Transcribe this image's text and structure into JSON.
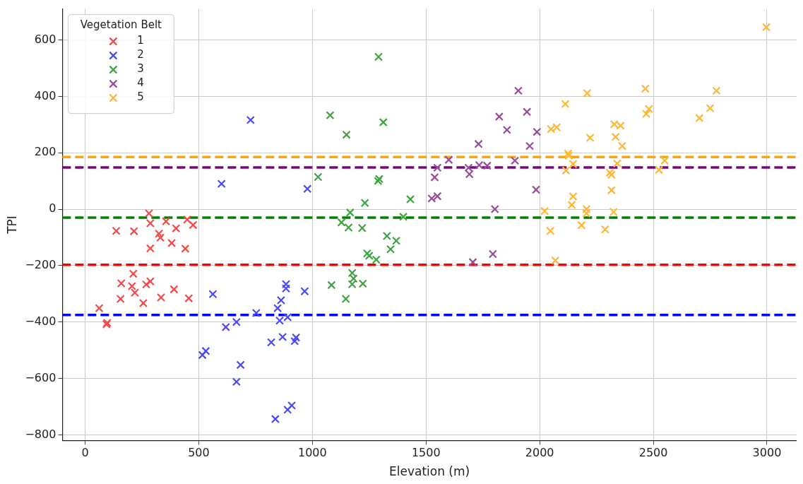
{
  "chart_data": {
    "type": "scatter",
    "xlabel": "Elevation (m)",
    "ylabel": "TPI",
    "legend_title": "Vegetation Belt",
    "legend": "top left",
    "grid": true,
    "marker": "cross",
    "xlim": [
      -100,
      3130
    ],
    "ylim": [
      -820,
      710
    ],
    "xticks": [
      0,
      500,
      1000,
      1500,
      2000,
      2500,
      3000
    ],
    "yticks": [
      {
        "value": -800,
        "label": "−800"
      },
      {
        "value": -600,
        "label": "−600"
      },
      {
        "value": -400,
        "label": "−400"
      },
      {
        "value": -200,
        "label": "−200"
      },
      0,
      200,
      400,
      600
    ],
    "series": [
      {
        "name": "1",
        "color": "#f24a4a",
        "x": [
          137,
          215,
          281,
          287,
          356,
          400,
          449,
          475,
          325,
          331,
          381,
          287,
          441,
          212,
          159,
          206,
          219,
          269,
          287,
          156,
          256,
          334,
          391,
          456,
          62,
          94,
          97
        ],
        "values": [
          -77,
          -78,
          -15,
          -50,
          -43,
          -68,
          -37,
          -56,
          -87,
          -101,
          -120,
          -139,
          -140,
          -229,
          -263,
          -273,
          -296,
          -267,
          -256,
          -318,
          -333,
          -313,
          -284,
          -316,
          -351,
          -408,
          -403
        ]
      },
      {
        "name": "2",
        "color": "#4a4af2",
        "x": [
          562,
          516,
          531,
          619,
          666,
          684,
          666,
          753,
          819,
          837,
          847,
          862,
          856,
          869,
          884,
          884,
          891,
          891,
          909,
          922,
          928,
          966,
          600,
          728,
          978
        ],
        "values": [
          -301,
          -517,
          -503,
          -418,
          -400,
          -552,
          -612,
          -368,
          -472,
          -744,
          -351,
          -323,
          -395,
          -453,
          -266,
          -281,
          -383,
          -711,
          -696,
          -468,
          -455,
          -291,
          90,
          316,
          72
        ]
      },
      {
        "name": "3",
        "color": "#3fa33f",
        "x": [
          1147,
          1084,
          1175,
          1181,
          1175,
          1222,
          1128,
          1159,
          1166,
          1219,
          1231,
          1328,
          1369,
          1344,
          1241,
          1250,
          1281,
          1400,
          1431,
          1291,
          1078,
          1150,
          1312,
          1025,
          1294,
          1289
        ],
        "values": [
          -318,
          -269,
          -226,
          -246,
          -266,
          -264,
          -47,
          -65,
          -12,
          -67,
          22,
          -95,
          -112,
          -142,
          -157,
          -165,
          -179,
          -27,
          35,
          540,
          333,
          264,
          308,
          114,
          107,
          100
        ]
      },
      {
        "name": "4",
        "color": "#9b4a9b",
        "x": [
          1906,
          1822,
          1944,
          1856,
          1988,
          1731,
          1956,
          1891,
          1600,
          1550,
          1687,
          1691,
          1734,
          1769,
          1538,
          1525,
          1550,
          1984,
          1803,
          1794,
          1706
        ],
        "values": [
          420,
          328,
          345,
          281,
          274,
          231,
          224,
          172,
          175,
          147,
          147,
          124,
          156,
          154,
          113,
          38,
          46,
          69,
          0,
          -159,
          -188
        ]
      },
      {
        "name": "5",
        "color": "#ffb733",
        "x": [
          2209,
          2465,
          2778,
          2113,
          2469,
          2481,
          2750,
          2703,
          2050,
          2075,
          2222,
          2328,
          2356,
          2334,
          2363,
          2125,
          2128,
          2147,
          2116,
          2341,
          2550,
          2525,
          2309,
          2316,
          2316,
          2147,
          2141,
          2206,
          2206,
          2325,
          2022,
          2047,
          2184,
          2288,
          2069,
          2997
        ],
        "values": [
          411,
          427,
          420,
          373,
          338,
          355,
          358,
          323,
          284,
          290,
          253,
          301,
          296,
          256,
          224,
          197,
          190,
          160,
          137,
          162,
          172,
          139,
          129,
          122,
          67,
          45,
          15,
          0,
          -15,
          -10,
          -7,
          -77,
          -57,
          -72,
          -182,
          645
        ]
      }
    ],
    "ref_lines": [
      {
        "axis": "y",
        "value": -197,
        "color": "#ff0000",
        "line_style": "dashed"
      },
      {
        "axis": "y",
        "value": -375,
        "color": "#0000ff",
        "line_style": "dashed"
      },
      {
        "axis": "y",
        "value": -30,
        "color": "#008000",
        "line_style": "dashed"
      },
      {
        "axis": "y",
        "value": 148,
        "color": "#800080",
        "line_style": "dashed"
      },
      {
        "axis": "y",
        "value": 185,
        "color": "#ffa500",
        "line_style": "dashed"
      }
    ]
  }
}
